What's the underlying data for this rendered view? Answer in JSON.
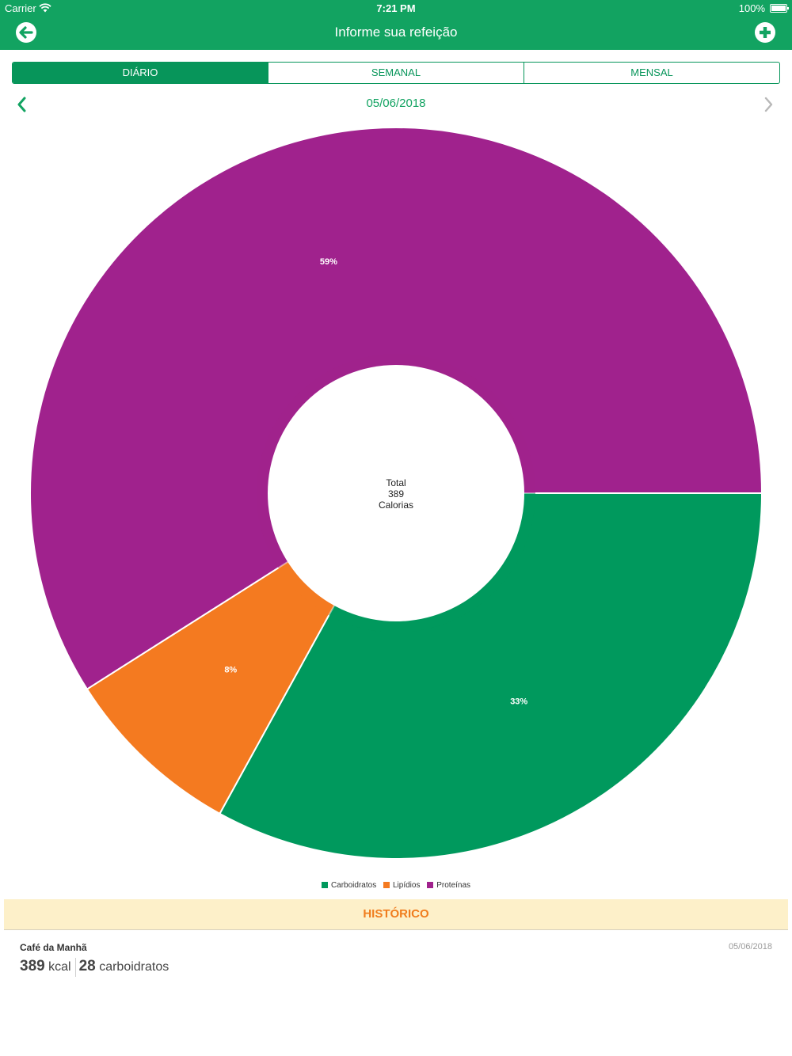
{
  "status_bar": {
    "carrier": "Carrier",
    "time": "7:21 PM",
    "battery": "100%"
  },
  "nav": {
    "title": "Informe sua refeição",
    "back_icon": "back-arrow-icon",
    "add_icon": "plus-circle-icon"
  },
  "tabs": [
    {
      "label": "DIÁRIO",
      "active": true
    },
    {
      "label": "SEMANAL",
      "active": false
    },
    {
      "label": "MENSAL",
      "active": false
    }
  ],
  "date": "05/06/2018",
  "chart_data": {
    "type": "pie",
    "donut": true,
    "center_text": {
      "line1": "Total",
      "line2": "389",
      "line3": "Calorias"
    },
    "slices": [
      {
        "name": "Carboidratos",
        "value": 33,
        "label": "33%",
        "color": "#00995d"
      },
      {
        "name": "Lipídios",
        "value": 8,
        "label": "8%",
        "color": "#f47a20"
      },
      {
        "name": "Proteínas",
        "value": 59,
        "label": "59%",
        "color": "#a0228d"
      }
    ],
    "legend_position": "bottom"
  },
  "history": {
    "header": "HISTÓRICO",
    "items": [
      {
        "meal": "Café da Manhã",
        "date": "05/06/2018",
        "kcal": "389",
        "kcal_unit": "kcal",
        "carbs": "28",
        "carbs_unit": "carboidratos"
      }
    ]
  }
}
